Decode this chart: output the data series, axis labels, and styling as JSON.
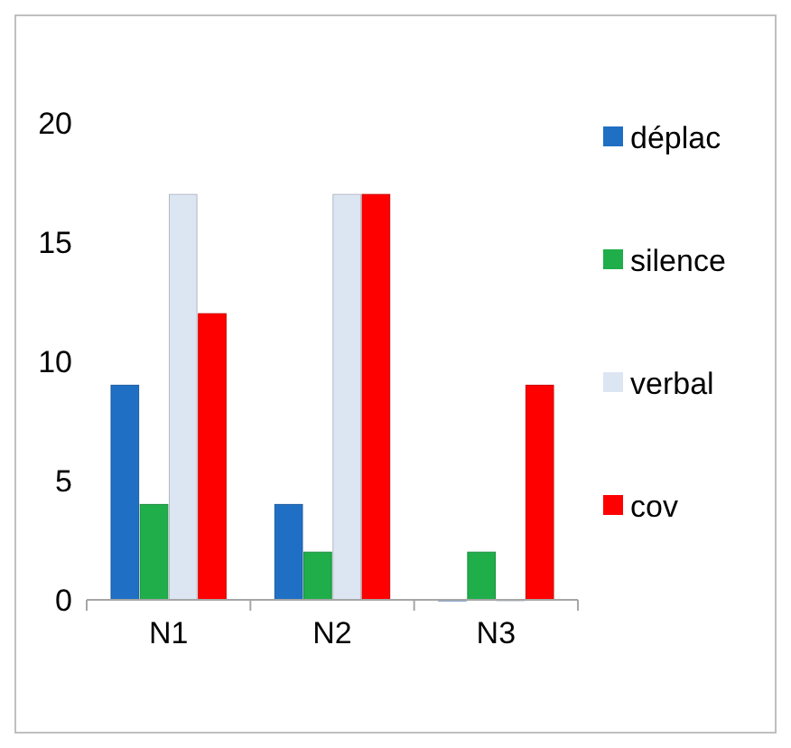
{
  "chart_data": {
    "type": "bar",
    "categories": [
      "N1",
      "N2",
      "N3"
    ],
    "series": [
      {
        "name": "déplac",
        "color": "#1f6fc5",
        "values": [
          9,
          4,
          0
        ]
      },
      {
        "name": "silence",
        "color": "#1fae4a",
        "values": [
          4,
          2,
          2
        ]
      },
      {
        "name": "verbal",
        "color": "#dce6f2",
        "values": [
          17,
          17,
          0
        ]
      },
      {
        "name": "cov",
        "color": "#ff0000",
        "values": [
          12,
          17,
          9
        ]
      }
    ],
    "ylim": [
      0,
      20
    ],
    "yticks": [
      0,
      5,
      10,
      15,
      20
    ],
    "grid": false,
    "legend": "right"
  }
}
